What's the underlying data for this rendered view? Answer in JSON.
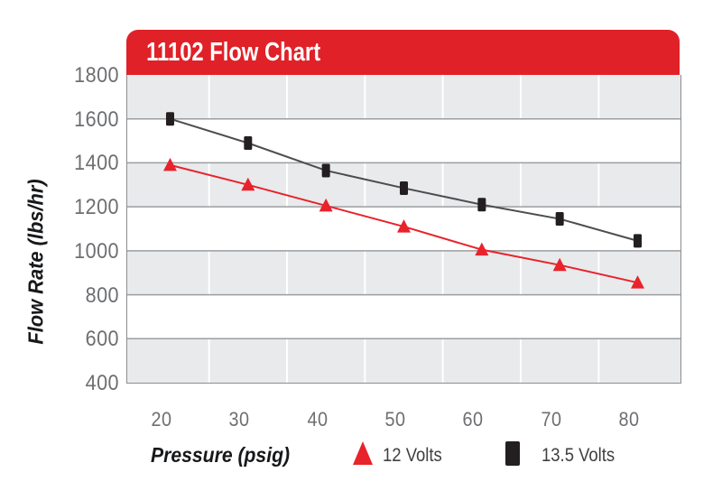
{
  "header": {
    "title": "11102 Flow Chart",
    "bg_color": "#e02128",
    "text_color": "#ffffff"
  },
  "axes": {
    "y_title": "Flow Rate (lbs/hr)",
    "x_title": "Pressure (psig)",
    "tick_label_color": "#6d6e71"
  },
  "legend": {
    "items": [
      {
        "label": "12 Volts",
        "marker": "triangle",
        "color": "#e8232b"
      },
      {
        "label": "13.5 Volts",
        "marker": "square",
        "color": "#231f20"
      }
    ]
  },
  "chart_data": {
    "type": "line",
    "title": "11102 Flow Chart",
    "xlabel": "Pressure (psig)",
    "ylabel": "Flow Rate (lbs/hr)",
    "x_ticks": [
      20,
      30,
      40,
      50,
      60,
      70,
      80
    ],
    "y_ticks": [
      1800,
      1600,
      1400,
      1200,
      1000,
      800,
      600,
      400
    ],
    "xlim": [
      15.5,
      86.5
    ],
    "ylim": [
      400,
      1800
    ],
    "grid": "horizontal gray lines every 200; alternating gray/white bands; white vertical separators",
    "legend_position": "bottom",
    "x": [
      21,
      31,
      41,
      51,
      61,
      71,
      81
    ],
    "series": [
      {
        "name": "12 Volts",
        "marker": "triangle",
        "color": "#e8232b",
        "line_color": "#e8232b",
        "values": [
          1390,
          1300,
          1205,
          1110,
          1005,
          935,
          855
        ]
      },
      {
        "name": "13.5 Volts",
        "marker": "square",
        "color": "#231f20",
        "line_color": "#4d4d4f",
        "values": [
          1600,
          1490,
          1365,
          1285,
          1210,
          1145,
          1045
        ]
      }
    ],
    "band_colors": {
      "gray": "#e9eaec",
      "white": "#ffffff"
    },
    "gridline_color": "#9b9ea1",
    "vertical_gridlines": [
      26,
      36,
      46,
      56,
      66,
      76
    ]
  }
}
